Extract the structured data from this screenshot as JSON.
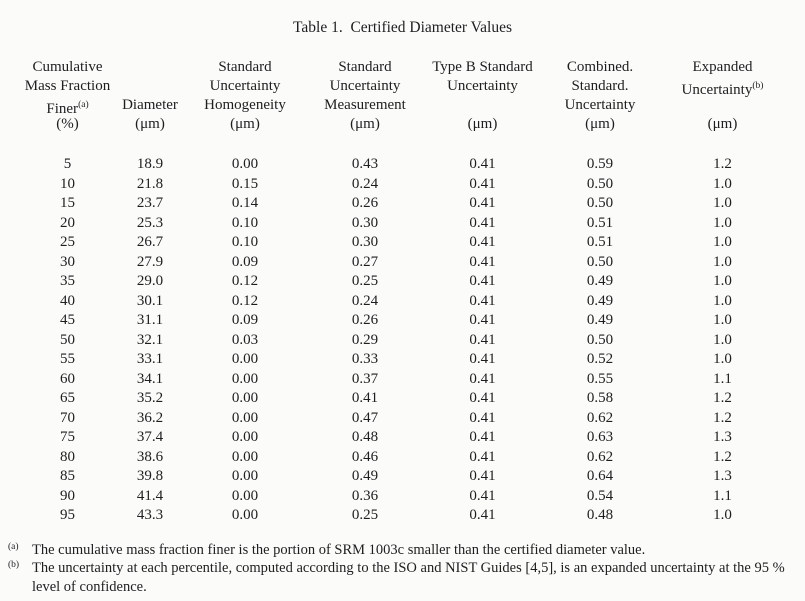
{
  "title": "Table 1.  Certified Diameter Values",
  "table": {
    "columns": [
      {
        "id": "cumulative-mass-fraction-finer",
        "header_lines": [
          {
            "text": "Cumulative",
            "sup": ""
          },
          {
            "text": "Mass Fraction",
            "sup": ""
          },
          {
            "text": "Finer",
            "sup": "(a)"
          },
          {
            "text": "(%)",
            "sup": ""
          }
        ]
      },
      {
        "id": "diameter",
        "header_lines": [
          {
            "text": "",
            "sup": ""
          },
          {
            "text": "",
            "sup": ""
          },
          {
            "text": "Diameter",
            "sup": ""
          },
          {
            "text": "(μm)",
            "sup": ""
          }
        ]
      },
      {
        "id": "standard-uncertainty-homogeneity",
        "header_lines": [
          {
            "text": "Standard",
            "sup": ""
          },
          {
            "text": "Uncertainty",
            "sup": ""
          },
          {
            "text": "Homogeneity",
            "sup": ""
          },
          {
            "text": "(μm)",
            "sup": ""
          }
        ]
      },
      {
        "id": "standard-uncertainty-measurement",
        "header_lines": [
          {
            "text": "Standard",
            "sup": ""
          },
          {
            "text": "Uncertainty",
            "sup": ""
          },
          {
            "text": "Measurement",
            "sup": ""
          },
          {
            "text": "(μm)",
            "sup": ""
          }
        ]
      },
      {
        "id": "type-b-standard-uncertainty",
        "header_lines": [
          {
            "text": "Type B Standard",
            "sup": ""
          },
          {
            "text": "Uncertainty",
            "sup": ""
          },
          {
            "text": "",
            "sup": ""
          },
          {
            "text": "(μm)",
            "sup": ""
          }
        ]
      },
      {
        "id": "combined-standard-uncertainty",
        "header_lines": [
          {
            "text": "Combined.",
            "sup": ""
          },
          {
            "text": "Standard.",
            "sup": ""
          },
          {
            "text": "Uncertainty",
            "sup": ""
          },
          {
            "text": "(μm)",
            "sup": ""
          }
        ]
      },
      {
        "id": "expanded-uncertainty",
        "header_lines": [
          {
            "text": "Expanded",
            "sup": ""
          },
          {
            "text": "Uncertainty",
            "sup": "(b)"
          },
          {
            "text": "",
            "sup": ""
          },
          {
            "text": "(μm)",
            "sup": ""
          }
        ]
      }
    ],
    "rows": [
      [
        "5",
        "18.9",
        "0.00",
        "0.43",
        "0.41",
        "0.59",
        "1.2"
      ],
      [
        "10",
        "21.8",
        "0.15",
        "0.24",
        "0.41",
        "0.50",
        "1.0"
      ],
      [
        "15",
        "23.7",
        "0.14",
        "0.26",
        "0.41",
        "0.50",
        "1.0"
      ],
      [
        "20",
        "25.3",
        "0.10",
        "0.30",
        "0.41",
        "0.51",
        "1.0"
      ],
      [
        "25",
        "26.7",
        "0.10",
        "0.30",
        "0.41",
        "0.51",
        "1.0"
      ],
      [
        "30",
        "27.9",
        "0.09",
        "0.27",
        "0.41",
        "0.50",
        "1.0"
      ],
      [
        "35",
        "29.0",
        "0.12",
        "0.25",
        "0.41",
        "0.49",
        "1.0"
      ],
      [
        "40",
        "30.1",
        "0.12",
        "0.24",
        "0.41",
        "0.49",
        "1.0"
      ],
      [
        "45",
        "31.1",
        "0.09",
        "0.26",
        "0.41",
        "0.49",
        "1.0"
      ],
      [
        "50",
        "32.1",
        "0.03",
        "0.29",
        "0.41",
        "0.50",
        "1.0"
      ],
      [
        "55",
        "33.1",
        "0.00",
        "0.33",
        "0.41",
        "0.52",
        "1.0"
      ],
      [
        "60",
        "34.1",
        "0.00",
        "0.37",
        "0.41",
        "0.55",
        "1.1"
      ],
      [
        "65",
        "35.2",
        "0.00",
        "0.41",
        "0.41",
        "0.58",
        "1.2"
      ],
      [
        "70",
        "36.2",
        "0.00",
        "0.47",
        "0.41",
        "0.62",
        "1.2"
      ],
      [
        "75",
        "37.4",
        "0.00",
        "0.48",
        "0.41",
        "0.63",
        "1.3"
      ],
      [
        "80",
        "38.6",
        "0.00",
        "0.46",
        "0.41",
        "0.62",
        "1.2"
      ],
      [
        "85",
        "39.8",
        "0.00",
        "0.49",
        "0.41",
        "0.64",
        "1.3"
      ],
      [
        "90",
        "41.4",
        "0.00",
        "0.36",
        "0.41",
        "0.54",
        "1.1"
      ],
      [
        "95",
        "43.3",
        "0.00",
        "0.25",
        "0.41",
        "0.48",
        "1.0"
      ]
    ]
  },
  "footnotes": [
    {
      "marker": "(a)",
      "text": "The cumulative mass fraction finer is the portion of SRM 1003c smaller than the certified diameter value."
    },
    {
      "marker": "(b)",
      "text": "The uncertainty at each percentile, computed according to the ISO and NIST Guides [4,5], is an expanded uncertainty at the 95 % level of confidence."
    }
  ]
}
